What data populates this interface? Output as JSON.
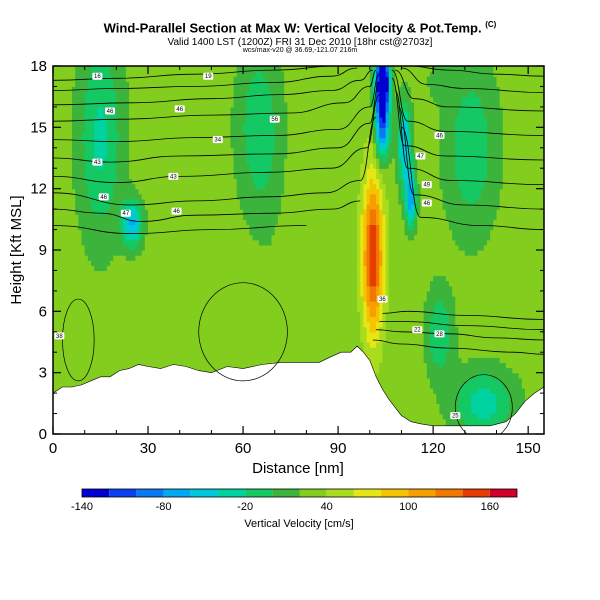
{
  "header": {
    "title": "Wind-Parallel Section at Max W: Vertical Velocity & Pot.Temp.",
    "title_mark": "(C)",
    "subtitle": "Valid 1400 LST (1200Z) FRI 31 Dec 2010 [18hr cst@2703z]",
    "line3": "wcs/max-v20 @ 36.69,-121.07 216m"
  },
  "chart_data": {
    "type": "heatmap",
    "xlabel": "Distance [nm]",
    "ylabel": "Height [Kft MSL]",
    "xlim": [
      0,
      155
    ],
    "ylim": [
      0,
      18
    ],
    "xticks": [
      "0",
      "30",
      "60",
      "90",
      "120",
      "150"
    ],
    "xtick_values": [
      0,
      30,
      60,
      90,
      120,
      150
    ],
    "yticks": [
      "0",
      "3",
      "6",
      "9",
      "12",
      "15",
      "18"
    ],
    "ytick_values": [
      0,
      3,
      6,
      9,
      12,
      15,
      18
    ],
    "colorbar": {
      "title": "Vertical Velocity [cm/s]",
      "min": -140,
      "max": 180,
      "labels": [
        "-140",
        "-80",
        "-20",
        "40",
        "100",
        "160"
      ],
      "label_values": [
        -140,
        -80,
        -20,
        40,
        100,
        160
      ],
      "bins": [
        {
          "from": -140,
          "to": -120,
          "color": "#0000d2"
        },
        {
          "from": -120,
          "to": -100,
          "color": "#0a40f0"
        },
        {
          "from": -100,
          "to": -80,
          "color": "#0a78f0"
        },
        {
          "from": -80,
          "to": -60,
          "color": "#00aaf0"
        },
        {
          "from": -60,
          "to": -40,
          "color": "#00c8dc"
        },
        {
          "from": -40,
          "to": -20,
          "color": "#00d2a0"
        },
        {
          "from": -20,
          "to": 0,
          "color": "#14c864"
        },
        {
          "from": 0,
          "to": 20,
          "color": "#3cb43c"
        },
        {
          "from": 20,
          "to": 40,
          "color": "#82cd1e"
        },
        {
          "from": 40,
          "to": 60,
          "color": "#aadc1e"
        },
        {
          "from": 60,
          "to": 80,
          "color": "#e6e614"
        },
        {
          "from": 80,
          "to": 100,
          "color": "#f5c300"
        },
        {
          "from": 100,
          "to": 120,
          "color": "#f5a000"
        },
        {
          "from": 120,
          "to": 140,
          "color": "#f07800"
        },
        {
          "from": 140,
          "to": 160,
          "color": "#e63c00"
        },
        {
          "from": 160,
          "to": 180,
          "color": "#d20028"
        }
      ]
    },
    "field": {
      "background": 30,
      "features": [
        {
          "x": 101,
          "y": 8.6,
          "sx": 2.2,
          "sy": 2.6,
          "value": 155
        },
        {
          "x": 101,
          "y": 11.0,
          "sx": 2.8,
          "sy": 3.2,
          "value": 40
        },
        {
          "x": 104,
          "y": 17.3,
          "sx": 1.5,
          "sy": 0.9,
          "value": -190
        },
        {
          "x": 104,
          "y": 15.2,
          "sx": 1.6,
          "sy": 1.2,
          "value": -110
        },
        {
          "x": 111,
          "y": 14.2,
          "sx": 1.5,
          "sy": 1.5,
          "value": -60
        },
        {
          "x": 113,
          "y": 11.5,
          "sx": 1.2,
          "sy": 1.0,
          "value": -70
        },
        {
          "x": 25,
          "y": 10.3,
          "sx": 2.3,
          "sy": 0.8,
          "value": -60
        },
        {
          "x": 15,
          "y": 14.5,
          "sx": 5,
          "sy": 3.5,
          "value": -25
        },
        {
          "x": 65,
          "y": 15,
          "sx": 5,
          "sy": 3,
          "value": -15
        },
        {
          "x": 132,
          "y": 14,
          "sx": 6,
          "sy": 3,
          "value": -15
        },
        {
          "x": 122,
          "y": 5,
          "sx": 3,
          "sy": 1.5,
          "value": -20
        },
        {
          "x": 136,
          "y": 1.5,
          "sx": 7,
          "sy": 1.2,
          "value": -30
        },
        {
          "x": 68,
          "y": 11,
          "sx": 3,
          "sy": 2.5,
          "value": 25
        },
        {
          "x": 12,
          "y": 6.3,
          "sx": 1.8,
          "sy": 2.0,
          "value": 30
        },
        {
          "x": 88,
          "y": 14.5,
          "sx": 2.5,
          "sy": 3,
          "value": 25
        },
        {
          "x": 108,
          "y": 17.5,
          "sx": 2,
          "sy": 0.8,
          "value": 30
        },
        {
          "x": 120,
          "y": 17.3,
          "sx": 3,
          "sy": 0.8,
          "value": 20
        },
        {
          "x": 5,
          "y": 3.8,
          "sx": 2.5,
          "sy": 1.2,
          "value": 25
        },
        {
          "x": 30,
          "y": 17.5,
          "sx": 3,
          "sy": 0.8,
          "value": 25
        }
      ]
    },
    "terrain": [
      [
        0,
        2.0
      ],
      [
        3,
        2.3
      ],
      [
        6,
        2.3
      ],
      [
        9,
        2.4
      ],
      [
        12,
        2.6
      ],
      [
        15,
        2.8
      ],
      [
        18,
        2.8
      ],
      [
        21,
        3.1
      ],
      [
        24,
        3.2
      ],
      [
        27,
        3.4
      ],
      [
        30,
        3.3
      ],
      [
        34,
        3.2
      ],
      [
        38,
        3.4
      ],
      [
        42,
        3.3
      ],
      [
        46,
        3.1
      ],
      [
        50,
        3.0
      ],
      [
        55,
        3.3
      ],
      [
        60,
        3.2
      ],
      [
        66,
        3.4
      ],
      [
        72,
        3.5
      ],
      [
        78,
        3.5
      ],
      [
        84,
        3.5
      ],
      [
        88,
        3.8
      ],
      [
        91,
        4.0
      ],
      [
        94,
        4.0
      ],
      [
        96,
        4.3
      ],
      [
        98,
        4.0
      ],
      [
        100,
        3.6
      ],
      [
        102,
        2.8
      ],
      [
        104,
        2.2
      ],
      [
        106,
        1.7
      ],
      [
        108,
        1.3
      ],
      [
        110,
        0.9
      ],
      [
        113,
        0.6
      ],
      [
        116,
        0.5
      ],
      [
        120,
        0.4
      ],
      [
        126,
        0.4
      ],
      [
        132,
        0.4
      ],
      [
        138,
        0.4
      ],
      [
        143,
        0.6
      ],
      [
        146,
        1.0
      ],
      [
        149,
        1.6
      ],
      [
        152,
        2.0
      ],
      [
        155,
        2.3
      ]
    ],
    "isentropes": {
      "levels_curves": [
        [
          [
            0,
            17.3
          ],
          [
            20,
            17.4
          ],
          [
            45,
            17.6
          ],
          [
            70,
            17.8
          ],
          [
            90,
            18.0
          ]
        ],
        [
          [
            112,
            18.0
          ],
          [
            125,
            17.8
          ],
          [
            140,
            17.6
          ],
          [
            155,
            17.5
          ]
        ],
        [
          [
            0,
            16.8
          ],
          [
            20,
            16.9
          ],
          [
            45,
            17.0
          ],
          [
            70,
            17.2
          ],
          [
            88,
            17.5
          ],
          [
            96,
            17.9
          ]
        ],
        [
          [
            110,
            17.9
          ],
          [
            118,
            17.1
          ],
          [
            130,
            16.9
          ],
          [
            155,
            16.7
          ]
        ],
        [
          [
            0,
            16.1
          ],
          [
            25,
            16.2
          ],
          [
            50,
            16.4
          ],
          [
            72,
            16.6
          ],
          [
            88,
            16.8
          ],
          [
            97,
            17.3
          ],
          [
            101,
            17.8
          ]
        ],
        [
          [
            108,
            17.8
          ],
          [
            114,
            16.4
          ],
          [
            125,
            16.0
          ],
          [
            155,
            15.8
          ]
        ],
        [
          [
            0,
            15.3
          ],
          [
            22,
            15.4
          ],
          [
            50,
            15.6
          ],
          [
            75,
            15.7
          ],
          [
            92,
            16.2
          ],
          [
            100,
            17.0
          ],
          [
            102,
            17.8
          ]
        ],
        [
          [
            107,
            17.8
          ],
          [
            112,
            15.3
          ],
          [
            124,
            14.8
          ],
          [
            155,
            14.6
          ]
        ],
        [
          [
            0,
            14.4
          ],
          [
            20,
            14.3
          ],
          [
            45,
            14.5
          ],
          [
            70,
            14.6
          ],
          [
            90,
            14.9
          ],
          [
            100,
            16.0
          ],
          [
            103,
            17.6
          ]
        ],
        [
          [
            107,
            17.4
          ],
          [
            111,
            14.1
          ],
          [
            124,
            13.6
          ],
          [
            155,
            13.4
          ]
        ],
        [
          [
            0,
            13.5
          ],
          [
            18,
            13.3
          ],
          [
            40,
            13.6
          ],
          [
            70,
            13.7
          ],
          [
            90,
            14.0
          ],
          [
            100,
            15.2
          ],
          [
            103,
            17.2
          ]
        ],
        [
          [
            108,
            16.8
          ],
          [
            112,
            13.0
          ],
          [
            126,
            12.4
          ],
          [
            155,
            12.2
          ]
        ],
        [
          [
            0,
            12.6
          ],
          [
            20,
            12.3
          ],
          [
            40,
            12.6
          ],
          [
            68,
            12.8
          ],
          [
            88,
            13.0
          ],
          [
            99,
            14.0
          ],
          [
            103,
            16.6
          ]
        ],
        [
          [
            109,
            16.0
          ],
          [
            114,
            11.7
          ],
          [
            130,
            11.2
          ],
          [
            155,
            11.0
          ]
        ],
        [
          [
            0,
            11.8
          ],
          [
            25,
            11.2
          ],
          [
            45,
            11.4
          ],
          [
            68,
            11.6
          ],
          [
            86,
            11.8
          ],
          [
            97,
            12.4
          ],
          [
            102,
            15.5
          ]
        ],
        [
          [
            110,
            15.0
          ],
          [
            116,
            10.6
          ],
          [
            135,
            10.2
          ],
          [
            155,
            10.0
          ]
        ],
        [
          [
            0,
            11.0
          ],
          [
            15,
            10.8
          ],
          [
            28,
            10.4
          ],
          [
            45,
            10.7
          ],
          [
            70,
            10.8
          ],
          [
            88,
            11.0
          ],
          [
            97,
            11.4
          ]
        ],
        [
          [
            0,
            10.2
          ],
          [
            25,
            9.8
          ],
          [
            50,
            10.0
          ],
          [
            80,
            10.2
          ]
        ],
        [
          [
            104,
            5.9
          ],
          [
            112,
            6.0
          ],
          [
            130,
            5.8
          ],
          [
            155,
            5.6
          ]
        ],
        [
          [
            103,
            5.5
          ],
          [
            112,
            5.5
          ],
          [
            130,
            5.3
          ],
          [
            155,
            5.1
          ]
        ],
        [
          [
            102,
            5.1
          ],
          [
            110,
            5.0
          ],
          [
            125,
            4.9
          ],
          [
            140,
            4.7
          ],
          [
            155,
            4.6
          ]
        ],
        [
          [
            101,
            4.6
          ],
          [
            110,
            4.4
          ],
          [
            125,
            4.2
          ],
          [
            145,
            4.0
          ],
          [
            155,
            3.9
          ]
        ]
      ],
      "labels": [
        {
          "x": 14,
          "y": 17.5,
          "text": "16"
        },
        {
          "x": 49,
          "y": 17.5,
          "text": "19"
        },
        {
          "x": 18,
          "y": 15.8,
          "text": "46"
        },
        {
          "x": 40,
          "y": 15.9,
          "text": "46"
        },
        {
          "x": 70,
          "y": 15.4,
          "text": "56"
        },
        {
          "x": 52,
          "y": 14.4,
          "text": "34"
        },
        {
          "x": 14,
          "y": 13.3,
          "text": "43"
        },
        {
          "x": 38,
          "y": 12.6,
          "text": "43"
        },
        {
          "x": 16,
          "y": 11.6,
          "text": "46"
        },
        {
          "x": 23,
          "y": 10.8,
          "text": "47"
        },
        {
          "x": 39,
          "y": 10.9,
          "text": "46"
        },
        {
          "x": 122,
          "y": 14.6,
          "text": "46"
        },
        {
          "x": 116,
          "y": 13.6,
          "text": "47"
        },
        {
          "x": 118,
          "y": 12.2,
          "text": "49"
        },
        {
          "x": 118,
          "y": 11.3,
          "text": "46"
        },
        {
          "x": 104,
          "y": 6.6,
          "text": "36"
        },
        {
          "x": 115,
          "y": 5.1,
          "text": "22"
        },
        {
          "x": 122,
          "y": 4.9,
          "text": "28"
        },
        {
          "x": 2,
          "y": 4.8,
          "text": "38"
        },
        {
          "x": 127,
          "y": 0.9,
          "text": "25"
        }
      ]
    }
  }
}
